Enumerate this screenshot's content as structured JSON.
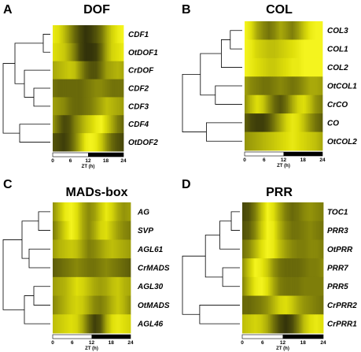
{
  "panels": [
    {
      "letter": "A",
      "title": "DOF",
      "rows": [
        "CDF1",
        "OtDOF1",
        "CrDOF",
        "CDF2",
        "CDF3",
        "CDF4",
        "OtDOF2"
      ],
      "tree": "A",
      "heat": [
        [
          0.9,
          0.85,
          0.7,
          0.5,
          0.3,
          0.15,
          0.05,
          0.1,
          0.2,
          0.35,
          0.6,
          0.8,
          0.9,
          0.95
        ],
        [
          0.85,
          0.8,
          0.75,
          0.6,
          0.4,
          0.15,
          0.05,
          0.05,
          0.1,
          0.3,
          0.6,
          0.8,
          0.85,
          0.9
        ],
        [
          0.6,
          0.65,
          0.7,
          0.75,
          0.7,
          0.5,
          0.3,
          0.2,
          0.2,
          0.35,
          0.55,
          0.6,
          0.65,
          0.6
        ],
        [
          0.35,
          0.3,
          0.3,
          0.3,
          0.3,
          0.3,
          0.35,
          0.4,
          0.45,
          0.45,
          0.4,
          0.35,
          0.35,
          0.35
        ],
        [
          0.55,
          0.5,
          0.45,
          0.35,
          0.3,
          0.3,
          0.35,
          0.4,
          0.5,
          0.6,
          0.7,
          0.65,
          0.6,
          0.55
        ],
        [
          0.5,
          0.3,
          0.15,
          0.2,
          0.4,
          0.55,
          0.7,
          0.8,
          0.9,
          0.95,
          0.8,
          0.6,
          0.4,
          0.3
        ],
        [
          0.2,
          0.15,
          0.1,
          0.2,
          0.4,
          0.65,
          0.9,
          0.95,
          0.9,
          0.75,
          0.5,
          0.3,
          0.2,
          0.15
        ]
      ],
      "xticks": [
        "0",
        "6",
        "12",
        "18",
        "24"
      ],
      "xlabel": "ZT (h)"
    },
    {
      "letter": "B",
      "title": "COL",
      "rows": [
        "COL3",
        "COL1",
        "COL2",
        "OtCOL1",
        "CrCO",
        "CO",
        "OtCOL2"
      ],
      "tree": "B",
      "heat": [
        [
          0.95,
          0.85,
          0.6,
          0.45,
          0.35,
          0.45,
          0.6,
          0.5,
          0.4,
          0.55,
          0.75,
          0.9,
          0.95,
          0.95
        ],
        [
          0.95,
          0.9,
          0.8,
          0.75,
          0.7,
          0.7,
          0.75,
          0.8,
          0.85,
          0.9,
          0.95,
          0.95,
          0.95,
          0.95
        ],
        [
          0.95,
          0.9,
          0.85,
          0.8,
          0.75,
          0.75,
          0.8,
          0.85,
          0.9,
          0.9,
          0.95,
          0.95,
          0.95,
          0.95
        ],
        [
          0.55,
          0.45,
          0.4,
          0.35,
          0.35,
          0.4,
          0.45,
          0.4,
          0.35,
          0.4,
          0.5,
          0.6,
          0.6,
          0.55
        ],
        [
          0.5,
          0.7,
          0.85,
          0.75,
          0.5,
          0.3,
          0.2,
          0.35,
          0.6,
          0.8,
          0.85,
          0.7,
          0.5,
          0.4
        ],
        [
          0.25,
          0.15,
          0.1,
          0.1,
          0.2,
          0.4,
          0.6,
          0.8,
          0.9,
          0.85,
          0.7,
          0.5,
          0.35,
          0.25
        ],
        [
          0.5,
          0.55,
          0.6,
          0.65,
          0.7,
          0.75,
          0.8,
          0.85,
          0.9,
          0.85,
          0.8,
          0.75,
          0.7,
          0.6
        ]
      ],
      "xticks": [
        "0",
        "6",
        "12",
        "18",
        "24"
      ],
      "xlabel": "ZT (h)"
    },
    {
      "letter": "C",
      "title": "MADs-box",
      "rows": [
        "AG",
        "SVP",
        "AGL61",
        "CrMADS",
        "AGL30",
        "OtMADS",
        "AGL46"
      ],
      "tree": "C",
      "heat": [
        [
          0.5,
          0.7,
          0.9,
          0.95,
          0.85,
          0.6,
          0.45,
          0.55,
          0.75,
          0.9,
          0.8,
          0.6,
          0.5,
          0.55
        ],
        [
          0.4,
          0.6,
          0.8,
          0.95,
          0.85,
          0.6,
          0.45,
          0.6,
          0.8,
          0.85,
          0.7,
          0.55,
          0.45,
          0.4
        ],
        [
          0.55,
          0.65,
          0.7,
          0.75,
          0.7,
          0.55,
          0.4,
          0.45,
          0.55,
          0.65,
          0.7,
          0.65,
          0.6,
          0.55
        ],
        [
          0.25,
          0.3,
          0.35,
          0.4,
          0.45,
          0.4,
          0.35,
          0.35,
          0.4,
          0.45,
          0.4,
          0.35,
          0.3,
          0.25
        ],
        [
          0.55,
          0.6,
          0.65,
          0.75,
          0.85,
          0.8,
          0.7,
          0.6,
          0.55,
          0.6,
          0.7,
          0.75,
          0.65,
          0.6
        ],
        [
          0.45,
          0.55,
          0.65,
          0.75,
          0.8,
          0.75,
          0.6,
          0.45,
          0.4,
          0.5,
          0.65,
          0.75,
          0.65,
          0.5
        ],
        [
          0.7,
          0.75,
          0.8,
          0.85,
          0.8,
          0.6,
          0.3,
          0.1,
          0.2,
          0.6,
          0.85,
          0.9,
          0.85,
          0.8
        ]
      ],
      "xticks": [
        "0",
        "6",
        "12",
        "18",
        "24"
      ],
      "xlabel": "ZT (h)"
    },
    {
      "letter": "D",
      "title": "PRR",
      "rows": [
        "TOC1",
        "PRR3",
        "OtPRR",
        "PRR7",
        "PRR5",
        "CrPRR2",
        "CrPRR1"
      ],
      "tree": "D",
      "heat": [
        [
          0.15,
          0.2,
          0.4,
          0.7,
          0.95,
          0.85,
          0.6,
          0.4,
          0.3,
          0.35,
          0.45,
          0.5,
          0.45,
          0.4
        ],
        [
          0.2,
          0.25,
          0.45,
          0.75,
          0.95,
          0.9,
          0.65,
          0.45,
          0.35,
          0.35,
          0.4,
          0.45,
          0.4,
          0.35
        ],
        [
          0.35,
          0.45,
          0.65,
          0.85,
          0.95,
          0.9,
          0.7,
          0.55,
          0.45,
          0.4,
          0.4,
          0.45,
          0.45,
          0.4
        ],
        [
          0.5,
          0.75,
          0.95,
          0.9,
          0.75,
          0.5,
          0.35,
          0.3,
          0.3,
          0.3,
          0.35,
          0.4,
          0.4,
          0.45
        ],
        [
          0.45,
          0.7,
          0.9,
          0.95,
          0.85,
          0.6,
          0.4,
          0.35,
          0.35,
          0.35,
          0.4,
          0.4,
          0.4,
          0.4
        ],
        [
          0.3,
          0.3,
          0.35,
          0.4,
          0.5,
          0.65,
          0.8,
          0.85,
          0.75,
          0.6,
          0.5,
          0.45,
          0.4,
          0.35
        ],
        [
          0.7,
          0.75,
          0.8,
          0.75,
          0.6,
          0.35,
          0.15,
          0.05,
          0.15,
          0.4,
          0.7,
          0.85,
          0.9,
          0.85
        ]
      ],
      "xticks": [
        "0",
        "6",
        "12",
        "18",
        "24"
      ],
      "xlabel": "ZT (h)"
    }
  ]
}
